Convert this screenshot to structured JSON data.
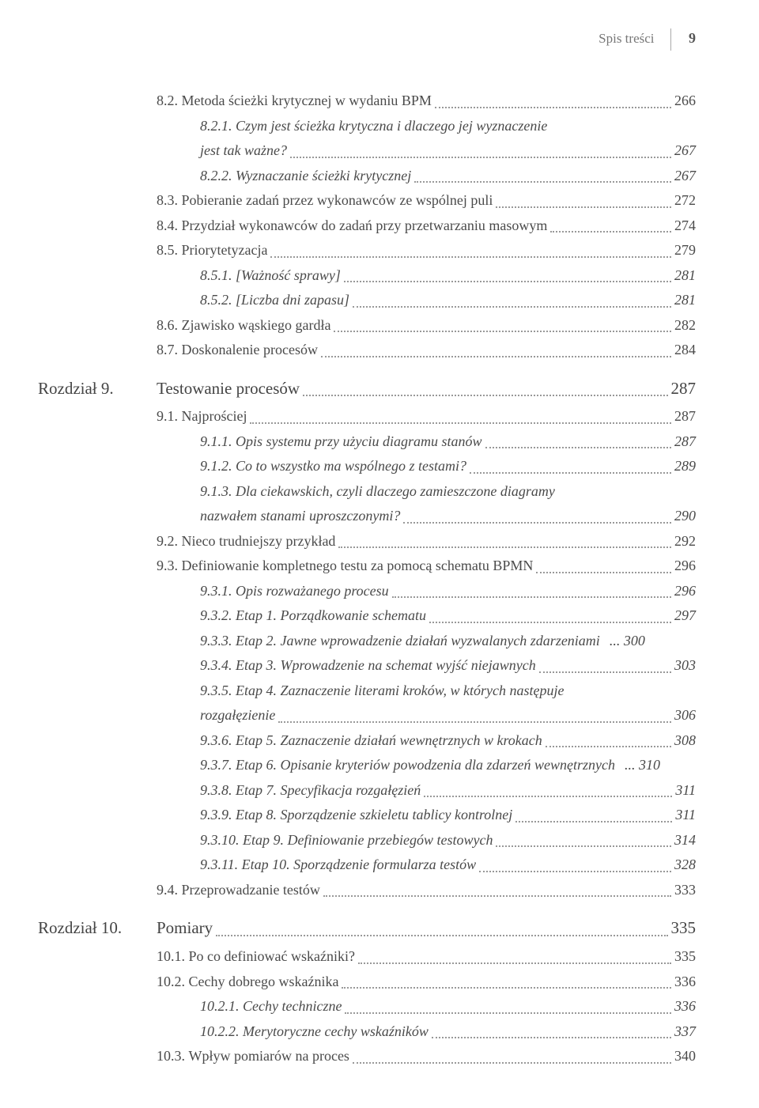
{
  "header": {
    "label": "Spis treści",
    "page": "9"
  },
  "colors": {
    "text": "#4a4a4a",
    "dots": "#999999",
    "background": "#ffffff"
  },
  "typography": {
    "body_fontsize_pt": 14,
    "chapter_fontsize_pt": 16,
    "font_family": "serif"
  },
  "entries": [
    {
      "level": 1,
      "num": "8.2.",
      "title": "Metoda ścieżki krytycznej w wydaniu BPM",
      "page": "266",
      "italic": false
    },
    {
      "level": 2,
      "num": "8.2.1.",
      "title": "Czym jest ścieżka krytyczna i dlaczego jej wyznaczenie",
      "cont": "jest tak ważne?",
      "page": "267",
      "italic": true
    },
    {
      "level": 2,
      "num": "8.2.2.",
      "title": "Wyznaczanie ścieżki krytycznej",
      "page": "267",
      "italic": true
    },
    {
      "level": 1,
      "num": "8.3.",
      "title": "Pobieranie zadań przez wykonawców ze wspólnej puli",
      "page": "272",
      "italic": false
    },
    {
      "level": 1,
      "num": "8.4.",
      "title": "Przydział wykonawców do zadań przy przetwarzaniu masowym",
      "page": "274",
      "italic": false
    },
    {
      "level": 1,
      "num": "8.5.",
      "title": "Priorytetyzacja",
      "page": "279",
      "italic": false
    },
    {
      "level": 2,
      "num": "8.5.1.",
      "title": "[Ważność sprawy]",
      "page": "281",
      "italic": true
    },
    {
      "level": 2,
      "num": "8.5.2.",
      "title": "[Liczba dni zapasu]",
      "page": "281",
      "italic": true
    },
    {
      "level": 1,
      "num": "8.6.",
      "title": "Zjawisko wąskiego gardła",
      "page": "282",
      "italic": false
    },
    {
      "level": 1,
      "num": "8.7.",
      "title": "Doskonalenie procesów",
      "page": "284",
      "italic": false
    },
    {
      "level": 0,
      "prefix": "Rozdział 9.",
      "num": "",
      "title": "Testowanie procesów",
      "page": "287",
      "italic": false
    },
    {
      "level": 1,
      "num": "9.1.",
      "title": "Najprościej",
      "page": "287",
      "italic": false
    },
    {
      "level": 2,
      "num": "9.1.1.",
      "title": "Opis systemu przy użyciu diagramu stanów",
      "page": "287",
      "italic": true
    },
    {
      "level": 2,
      "num": "9.1.2.",
      "title": "Co to wszystko ma wspólnego z testami?",
      "page": "289",
      "italic": true
    },
    {
      "level": 2,
      "num": "9.1.3.",
      "title": "Dla ciekawskich, czyli dlaczego zamieszczone diagramy",
      "cont": "nazwałem stanami uproszczonymi?",
      "page": "290",
      "italic": true
    },
    {
      "level": 1,
      "num": "9.2.",
      "title": "Nieco trudniejszy przykład",
      "page": "292",
      "italic": false
    },
    {
      "level": 1,
      "num": "9.3.",
      "title": "Definiowanie kompletnego testu za pomocą schematu BPMN",
      "page": "296",
      "italic": false
    },
    {
      "level": 2,
      "num": "9.3.1.",
      "title": "Opis rozważanego procesu",
      "page": "296",
      "italic": true
    },
    {
      "level": 2,
      "num": "9.3.2.",
      "title": "Etap 1. Porządkowanie schematu",
      "page": "297",
      "italic": true
    },
    {
      "level": 2,
      "num": "9.3.3.",
      "title": "Etap 2. Jawne wprowadzenie działań wyzwalanych zdarzeniami",
      "page": "300",
      "italic": true,
      "tight": true
    },
    {
      "level": 2,
      "num": "9.3.4.",
      "title": "Etap 3. Wprowadzenie na schemat wyjść niejawnych",
      "page": "303",
      "italic": true
    },
    {
      "level": 2,
      "num": "9.3.5.",
      "title": "Etap 4. Zaznaczenie literami kroków, w których następuje",
      "cont": "rozgałęzienie",
      "page": "306",
      "italic": true
    },
    {
      "level": 2,
      "num": "9.3.6.",
      "title": "Etap 5. Zaznaczenie działań wewnętrznych w krokach",
      "page": "308",
      "italic": true
    },
    {
      "level": 2,
      "num": "9.3.7.",
      "title": "Etap 6. Opisanie kryteriów powodzenia dla zdarzeń wewnętrznych",
      "page": "310",
      "italic": true,
      "tight": true
    },
    {
      "level": 2,
      "num": "9.3.8.",
      "title": "Etap 7. Specyfikacja rozgałęzień",
      "page": "311",
      "italic": true
    },
    {
      "level": 2,
      "num": "9.3.9.",
      "title": "Etap 8. Sporządzenie szkieletu tablicy kontrolnej",
      "page": "311",
      "italic": true
    },
    {
      "level": 2,
      "num": "9.3.10.",
      "title": "Etap 9. Definiowanie przebiegów testowych",
      "page": "314",
      "italic": true
    },
    {
      "level": 2,
      "num": "9.3.11.",
      "title": "Etap 10. Sporządzenie formularza testów",
      "page": "328",
      "italic": true
    },
    {
      "level": 1,
      "num": "9.4.",
      "title": "Przeprowadzanie testów",
      "page": "333",
      "italic": false
    },
    {
      "level": 0,
      "prefix": "Rozdział 10.",
      "num": "",
      "title": "Pomiary",
      "page": "335",
      "italic": false
    },
    {
      "level": 1,
      "num": "10.1.",
      "title": "Po co definiować wskaźniki?",
      "page": "335",
      "italic": false
    },
    {
      "level": 1,
      "num": "10.2.",
      "title": "Cechy dobrego wskaźnika",
      "page": "336",
      "italic": false
    },
    {
      "level": 2,
      "num": "10.2.1.",
      "title": "Cechy techniczne",
      "page": "336",
      "italic": true
    },
    {
      "level": 2,
      "num": "10.2.2.",
      "title": "Merytoryczne cechy wskaźników",
      "page": "337",
      "italic": true
    },
    {
      "level": 1,
      "num": "10.3.",
      "title": "Wpływ pomiarów na proces",
      "page": "340",
      "italic": false
    }
  ]
}
